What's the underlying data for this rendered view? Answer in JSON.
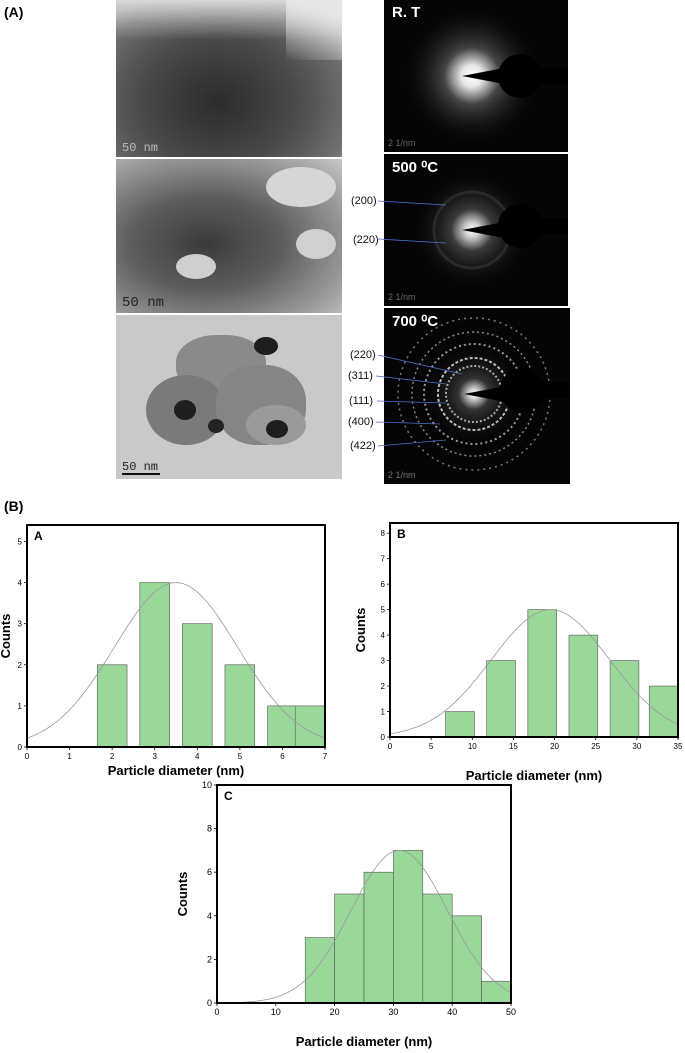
{
  "part_a": {
    "label": "(A)",
    "rows": [
      {
        "scale": "50 nm",
        "saed_title": "R. T",
        "saed_scale": "2 1/nm",
        "hkl": []
      },
      {
        "scale": "50 nm",
        "saed_title": "500 ⁰C",
        "saed_scale": "2 1/nm",
        "hkl": [
          "(200)",
          "(220)"
        ]
      },
      {
        "scale": "50 nm",
        "saed_title": "700 ⁰C",
        "saed_scale": "2 1/nm",
        "hkl": [
          "(220)",
          "(311)",
          "(111)",
          "(400)",
          "(422)"
        ]
      }
    ]
  },
  "part_b": {
    "label": "(B)"
  },
  "chart_data": [
    {
      "type": "bar",
      "panel_label": "A",
      "xlabel": "Particle diameter (nm)",
      "ylabel": "Counts",
      "xlim": [
        0,
        7
      ],
      "ylim": [
        0,
        5.4
      ],
      "xticks": [
        0,
        1,
        2,
        3,
        4,
        5,
        6,
        7
      ],
      "yticks": [
        0,
        1,
        2,
        3,
        4,
        5
      ],
      "bar_width": 0.7,
      "bars": [
        {
          "x": 2,
          "y": 2
        },
        {
          "x": 3,
          "y": 4
        },
        {
          "x": 4,
          "y": 3
        },
        {
          "x": 5,
          "y": 2
        },
        {
          "x": 6,
          "y": 1
        },
        {
          "x": 7,
          "y": 1
        }
      ],
      "fit": {
        "mean": 3.5,
        "sd": 1.45,
        "peak": 4.0
      },
      "bar_color": "#9ad89a",
      "grid": false
    },
    {
      "type": "bar",
      "panel_label": "B",
      "xlabel": "Particle diameter (nm)",
      "ylabel": "Counts",
      "xlim": [
        0,
        35
      ],
      "ylim": [
        0,
        8.4
      ],
      "xticks": [
        0,
        5,
        10,
        15,
        20,
        25,
        30,
        35
      ],
      "yticks": [
        0,
        1,
        2,
        3,
        4,
        5,
        6,
        7,
        8
      ],
      "bar_width": 3.5,
      "bars": [
        {
          "x": 8.5,
          "y": 1
        },
        {
          "x": 13.5,
          "y": 3
        },
        {
          "x": 18.5,
          "y": 5
        },
        {
          "x": 23.5,
          "y": 4
        },
        {
          "x": 28.5,
          "y": 3
        },
        {
          "x": 33.5,
          "y": 2
        }
      ],
      "fit": {
        "mean": 19.5,
        "sd": 7.2,
        "peak": 5.0
      },
      "bar_color": "#9ad89a",
      "grid": false
    },
    {
      "type": "bar",
      "panel_label": "C",
      "xlabel": "Particle diameter (nm)",
      "ylabel": "Counts",
      "xlim": [
        0,
        50
      ],
      "ylim": [
        0,
        10
      ],
      "xticks": [
        0,
        10,
        20,
        30,
        40,
        50
      ],
      "yticks": [
        0,
        2,
        4,
        6,
        8,
        10
      ],
      "bar_width": 5,
      "bars": [
        {
          "x": 17.5,
          "y": 3
        },
        {
          "x": 22.5,
          "y": 5
        },
        {
          "x": 27.5,
          "y": 6
        },
        {
          "x": 32.5,
          "y": 7
        },
        {
          "x": 37.5,
          "y": 5
        },
        {
          "x": 42.5,
          "y": 4
        },
        {
          "x": 47.5,
          "y": 1
        }
      ],
      "fit": {
        "mean": 31,
        "sd": 8.2,
        "peak": 7.0
      },
      "bar_color": "#9ad89a",
      "grid": false
    }
  ]
}
